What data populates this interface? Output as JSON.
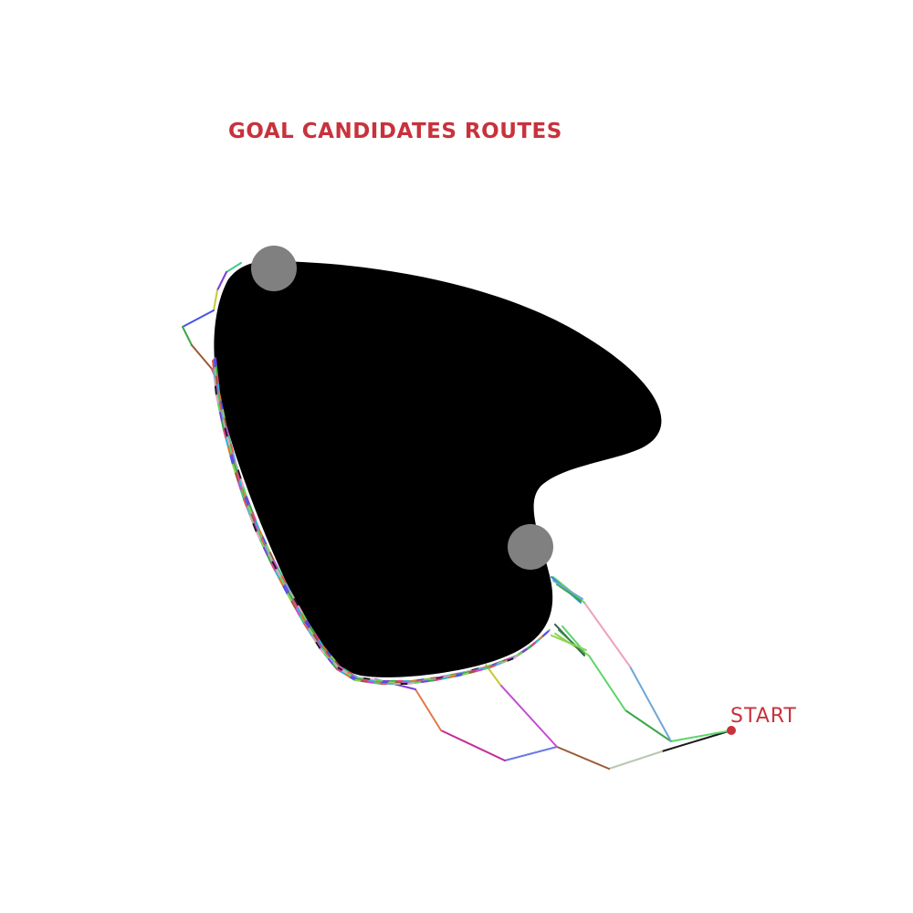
{
  "title": "GOAL CANDIDATES ROUTES",
  "start_label": "START",
  "colors": {
    "background": "#ffffff",
    "title": "#c8323c",
    "start": "#c8323c",
    "obstacle": "#000000",
    "goal_candidate": "#808080"
  }
}
